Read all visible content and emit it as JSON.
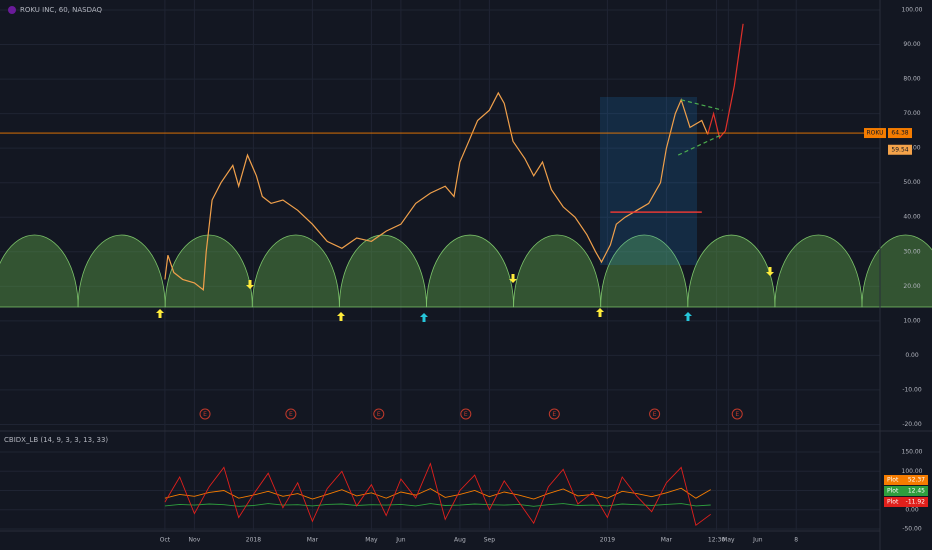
{
  "chart_data": [
    {
      "type": "line",
      "title": "ROKU INC, 60, NASDAQ",
      "xlim": [
        -4.59,
        25.24
      ],
      "xticks": [
        {
          "value": 1,
          "label": "Oct"
        },
        {
          "value": 2,
          "label": "Nov"
        },
        {
          "value": 4,
          "label": "2018"
        },
        {
          "value": 6,
          "label": "Mar"
        },
        {
          "value": 8,
          "label": "May"
        },
        {
          "value": 9,
          "label": "Jun"
        },
        {
          "value": 11,
          "label": "Aug"
        },
        {
          "value": 12,
          "label": "Sep"
        },
        {
          "value": 16,
          "label": "2019"
        },
        {
          "value": 18,
          "label": "Mar"
        },
        {
          "value": 19.7,
          "label": "12:30"
        },
        {
          "value": 20.1,
          "label": "May"
        },
        {
          "value": 21.1,
          "label": "Jun"
        },
        {
          "value": 22.4,
          "label": "8"
        }
      ],
      "ylim": [
        -21.6,
        102.9
      ],
      "yticks": [
        {
          "value": 100,
          "label": "100.00"
        },
        {
          "value": 90,
          "label": "90.00"
        },
        {
          "value": 80,
          "label": "80.00"
        },
        {
          "value": 70,
          "label": "70.00"
        },
        {
          "value": 60,
          "label": "60.00"
        },
        {
          "value": 50,
          "label": "50.00"
        },
        {
          "value": 40,
          "label": "40.00"
        },
        {
          "value": 30,
          "label": "30.00"
        },
        {
          "value": 20,
          "label": "20.00"
        },
        {
          "value": 10,
          "label": "10.00"
        },
        {
          "value": 0,
          "label": "0.00"
        },
        {
          "value": -10,
          "label": "-10.00"
        },
        {
          "value": -20,
          "label": "-20.00"
        }
      ],
      "grid": true,
      "series": [
        {
          "color": "#f0a04b",
          "x": [
            1.0,
            1.1,
            1.3,
            1.6,
            2.0,
            2.3,
            2.4,
            2.6,
            2.9,
            3.3,
            3.5,
            3.8,
            4.1,
            4.3,
            4.6,
            5.0,
            5.5,
            6.0,
            6.5,
            7.0,
            7.5,
            8.0,
            8.5,
            9.0,
            9.5,
            10.0,
            10.5,
            10.8,
            11.0,
            11.3,
            11.6,
            12.0,
            12.3,
            12.5,
            12.8,
            13.2,
            13.5,
            13.8,
            14.1,
            14.5,
            14.9,
            15.3,
            15.6,
            15.8,
            16.1,
            16.3,
            16.6,
            17.0,
            17.4,
            17.8,
            18.0,
            18.3,
            18.5,
            18.8,
            19.2,
            19.4
          ],
          "values": [
            22,
            29,
            24,
            22,
            21,
            19,
            30,
            45,
            50,
            55,
            49,
            58,
            52,
            46,
            44,
            45,
            42,
            38,
            33,
            31,
            34,
            33,
            36,
            38,
            44,
            47,
            49,
            46,
            56,
            62,
            68,
            71,
            76,
            73,
            62,
            57,
            52,
            56,
            48,
            43,
            40,
            35,
            30,
            27,
            32,
            38,
            40,
            42,
            44,
            50,
            60,
            70,
            74,
            66,
            68,
            64
          ]
        },
        {
          "color": "#e0302a",
          "x": [
            19.4,
            19.6,
            19.8,
            20.0,
            20.3,
            20.6
          ],
          "values": [
            64,
            70,
            63,
            65,
            78,
            96
          ]
        }
      ],
      "price_tags": [
        {
          "name": "ROKU",
          "value": 64.38,
          "color": "#f57c00"
        },
        {
          "value": 59.54,
          "color": "#f5a34a"
        }
      ],
      "levels": [
        {
          "value": 41.5,
          "x": [
            16.1,
            19.2
          ],
          "color": "#e53935"
        }
      ],
      "trendlines": [
        {
          "x": [
            18.5,
            19.9
          ],
          "y": [
            74,
            71
          ],
          "color": "#4caf50"
        },
        {
          "x": [
            18.4,
            19.9
          ],
          "y": [
            58,
            64
          ],
          "color": "#4caf50"
        }
      ],
      "earnings": [
        {
          "x": 2.36,
          "label": "E"
        },
        {
          "x": 5.27,
          "label": "E"
        },
        {
          "x": 8.25,
          "label": "E"
        },
        {
          "x": 11.2,
          "label": "E"
        },
        {
          "x": 14.2,
          "label": "E"
        },
        {
          "x": 17.6,
          "label": "E"
        },
        {
          "x": 20.4,
          "label": "E"
        }
      ]
    },
    {
      "type": "line",
      "title": "CBIDX_LB (14, 9, 3, 3, 13, 33)",
      "xlim": [
        -4.59,
        25.24
      ],
      "ylim": [
        -52.6,
        202
      ],
      "yticks": [
        {
          "value": 150,
          "label": "150.00"
        },
        {
          "value": 100,
          "label": "100.00"
        },
        {
          "value": 50,
          "label": "50.00"
        },
        {
          "value": 0,
          "label": "0.00"
        },
        {
          "value": -50,
          "label": "-50.00"
        }
      ],
      "x": [
        1.0,
        1.5,
        2.0,
        2.5,
        3.0,
        3.5,
        4.0,
        4.5,
        5.0,
        5.5,
        6.0,
        6.5,
        7.0,
        7.5,
        8.0,
        8.5,
        9.0,
        9.5,
        10.0,
        10.5,
        11.0,
        11.5,
        12.0,
        12.5,
        13.0,
        13.5,
        14.0,
        14.5,
        15.0,
        15.5,
        16.0,
        16.5,
        17.0,
        17.5,
        18.0,
        18.5,
        19.0,
        19.5
      ],
      "series": [
        {
          "name": "Plot",
          "color": "#f57c00",
          "values": [
            30,
            40,
            35,
            45,
            50,
            30,
            38,
            48,
            35,
            42,
            28,
            40,
            52,
            36,
            44,
            30,
            46,
            38,
            55,
            32,
            40,
            50,
            34,
            46,
            38,
            28,
            42,
            54,
            36,
            40,
            30,
            48,
            42,
            34,
            44,
            56,
            30,
            52.37
          ]
        },
        {
          "name": "Plot",
          "color": "#2e9e3e",
          "values": [
            10,
            14,
            12,
            15,
            13,
            9,
            11,
            16,
            12,
            13,
            10,
            14,
            15,
            11,
            13,
            12,
            14,
            10,
            16,
            11,
            12,
            15,
            13,
            12,
            14,
            9,
            13,
            16,
            11,
            12,
            10,
            15,
            13,
            11,
            14,
            16,
            10,
            12.45
          ]
        },
        {
          "name": "Plot",
          "color": "#e0201c",
          "values": [
            20,
            85,
            -10,
            60,
            110,
            -20,
            40,
            95,
            5,
            70,
            -30,
            55,
            100,
            10,
            65,
            -15,
            80,
            30,
            120,
            -25,
            50,
            90,
            0,
            75,
            20,
            -35,
            60,
            105,
            15,
            45,
            -20,
            85,
            35,
            -5,
            70,
            110,
            -40,
            -11.92
          ]
        }
      ]
    }
  ]
}
